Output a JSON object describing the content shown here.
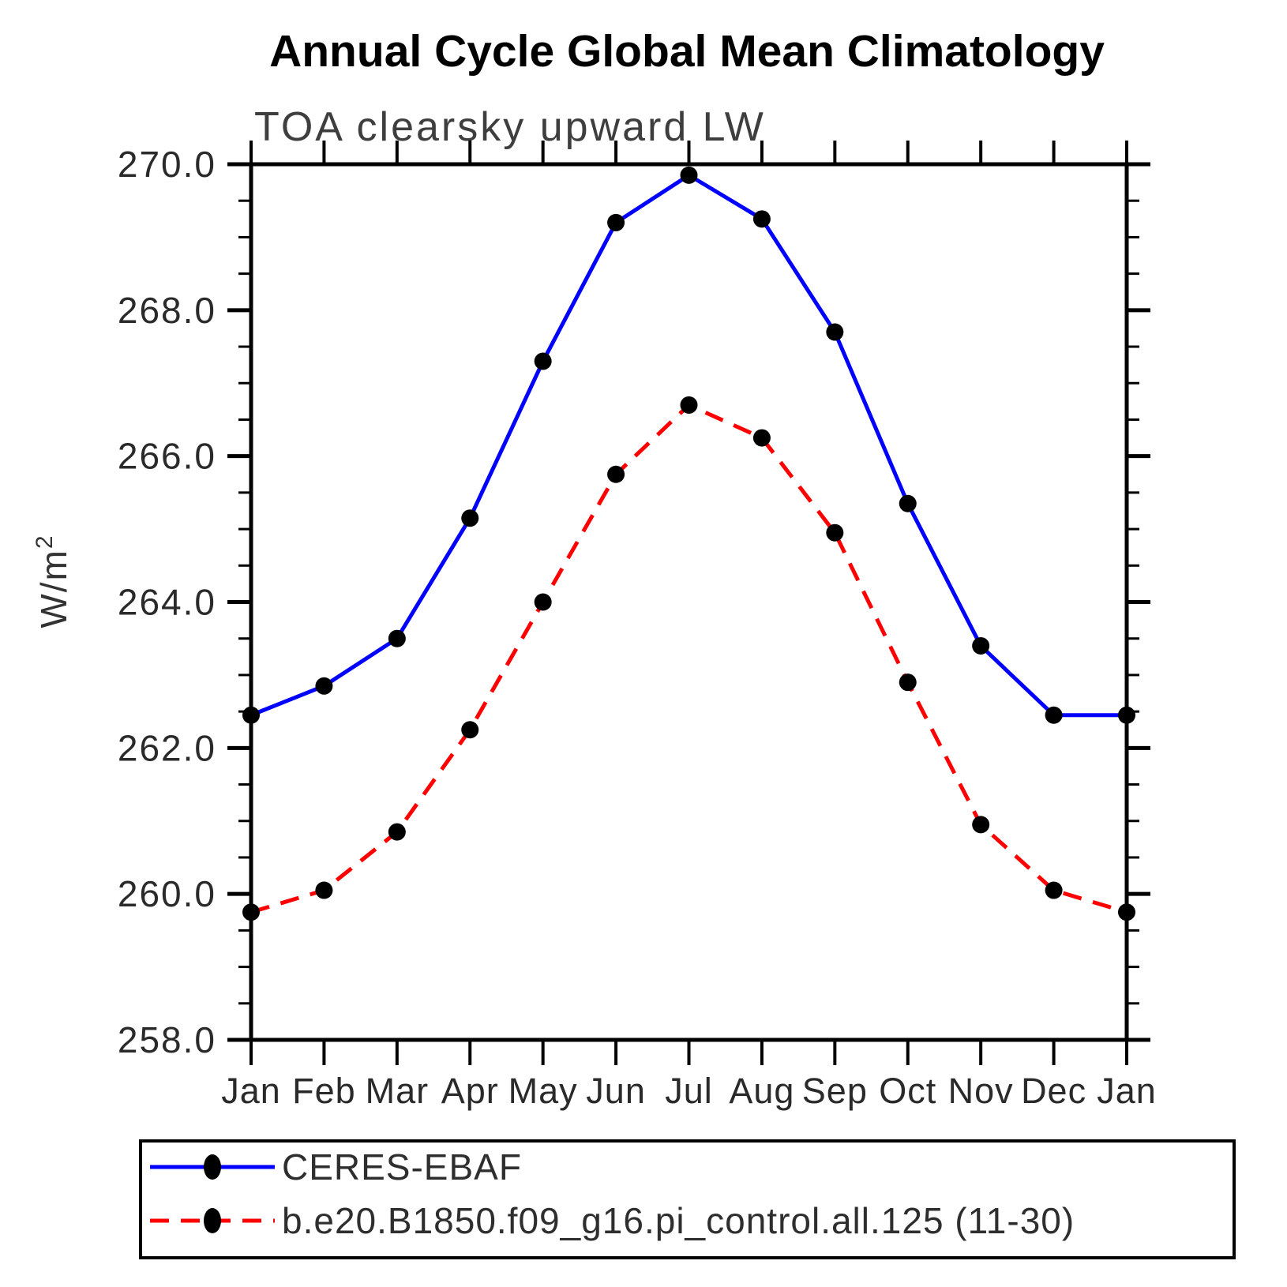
{
  "chart_data": {
    "type": "line",
    "title": "Annual Cycle Global Mean Climatology",
    "subtitle": "TOA clearsky upward LW",
    "ylabel": "W/m²",
    "ylabel_main": "W/m",
    "ylabel_sup": "2",
    "ylim": [
      258.0,
      270.0
    ],
    "y_major_tick_step": 2.0,
    "y_minor_tick_step": 0.5,
    "y_tick_labels": [
      "258.0",
      "260.0",
      "262.0",
      "264.0",
      "266.0",
      "268.0",
      "270.0"
    ],
    "categories": [
      "Jan",
      "Feb",
      "Mar",
      "Apr",
      "May",
      "Jun",
      "Jul",
      "Aug",
      "Sep",
      "Oct",
      "Nov",
      "Dec",
      "Jan"
    ],
    "grid": false,
    "legend_position": "bottom-left box",
    "series": [
      {
        "name": "CERES-EBAF",
        "line_color": "#0000ff",
        "line_style": "solid",
        "marker": "filled-circle",
        "marker_color": "#000000",
        "values": [
          262.45,
          262.85,
          263.5,
          265.15,
          267.3,
          269.2,
          269.85,
          269.25,
          267.7,
          265.35,
          263.4,
          262.45,
          262.45
        ]
      },
      {
        "name": "b.e20.B1850.f09_g16.pi_control.all.125 (11-30)",
        "line_color": "#ff0000",
        "line_style": "dashed",
        "marker": "filled-circle",
        "marker_color": "#000000",
        "values": [
          259.75,
          260.05,
          260.85,
          262.25,
          264.0,
          265.75,
          266.7,
          266.25,
          264.95,
          262.9,
          260.95,
          260.05,
          259.75
        ]
      }
    ]
  }
}
